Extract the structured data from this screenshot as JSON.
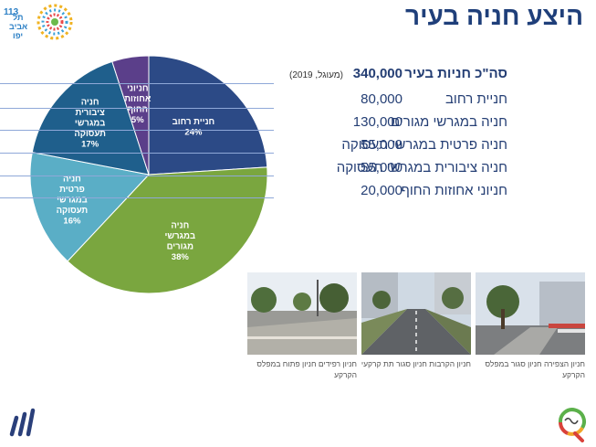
{
  "header": {
    "title": "היצע חניה בעיר",
    "logo_text": [
      "תל",
      "אביב",
      "יפו"
    ],
    "logo_number": "113"
  },
  "chart_data": {
    "type": "pie",
    "slices": [
      {
        "label": "חניית רחוב",
        "percent": 24,
        "color": "#2c4a86"
      },
      {
        "label": "חניה במגרשי מגורים",
        "percent": 38,
        "color": "#7aa63f"
      },
      {
        "label": "חניה פרטית במגרשי תעסוקה",
        "percent": 16,
        "color": "#5aaec6"
      },
      {
        "label": "חניה ציבורית במגרשי תעסוקה",
        "percent": 17,
        "color": "#1f5f8c"
      },
      {
        "label": "חניוני אחוזות החוף",
        "percent": 5,
        "color": "#5b3f8a"
      }
    ],
    "slice_label_lines": [
      [
        "חניית רחוב",
        "24%"
      ],
      [
        "חניה",
        "במגרשי",
        "מגורים",
        "38%"
      ],
      [
        "חניה",
        "פרטית",
        "במגרשי",
        "תעסוקה",
        "16%"
      ],
      [
        "חניה",
        "ציבורית",
        "במגרשי",
        "תעסוקה",
        "17%"
      ],
      [
        "חניוני",
        "אחוזות",
        "החוף",
        "5%"
      ]
    ]
  },
  "summary": {
    "total_label": "סה\"כ חניות בעיר",
    "total_value": "340,000",
    "total_note": "(מעוגל, 2019)",
    "rows": [
      {
        "label": "חניית רחוב",
        "value": "80,000"
      },
      {
        "label": "חניה במגרשי מגורים",
        "value": "130,000"
      },
      {
        "label": "חניה פרטית במגרשי תעסוקה",
        "value": "55,000"
      },
      {
        "label": "חניה ציבורית במגרשי תעסוקה",
        "value": "55,000"
      },
      {
        "label": "חניוני אחוזות החוף",
        "value": "20,000"
      }
    ]
  },
  "photos": [
    {
      "caption": "חניון רפידים חניון פתוח במפלס הקרקע"
    },
    {
      "caption": "חניון הקרבות חניון סגור תת קרקעי"
    },
    {
      "caption": "חניון הצפירה חניון סגור במפלס הקרקע"
    }
  ],
  "colors": {
    "title": "#1f3f7a",
    "text": "#243e74",
    "rule": "#8fa8d8"
  }
}
